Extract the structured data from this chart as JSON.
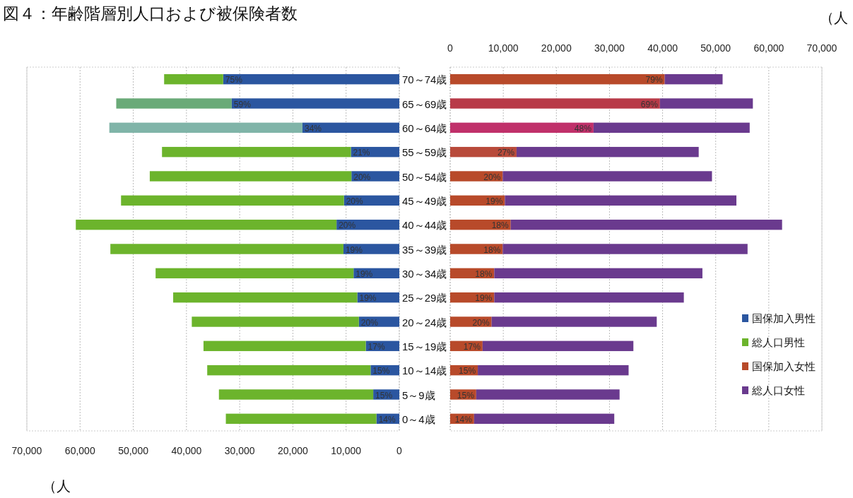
{
  "chart_data": [
    {
      "type": "bar",
      "orientation": "horizontal",
      "stacked": true,
      "title": "図４：年齢階層別人口および被保険者数",
      "annotations": [
        "（人",
        {
          "text": "75%",
          "x": 33100,
          "y": "70～74歳"
        },
        {
          "text": "59%",
          "x": 31500,
          "y": "65～69歳"
        },
        {
          "text": "34%",
          "x": 18200,
          "y": "60～64歳"
        },
        {
          "text": "21%",
          "x": 9100,
          "y": "55～59歳"
        },
        {
          "text": "20%",
          "x": 9000,
          "y": "50～54歳"
        },
        {
          "text": "20%",
          "x": 10400,
          "y": "45～49歳"
        },
        {
          "text": "20%",
          "x": 11800,
          "y": "40～44歳"
        },
        {
          "text": "19%",
          "x": 10500,
          "y": "35～39歳"
        },
        {
          "text": "19%",
          "x": 8600,
          "y": "30～34歳"
        },
        {
          "text": "19%",
          "x": 7900,
          "y": "25～29歳"
        },
        {
          "text": "20%",
          "x": 7600,
          "y": "20～24歳"
        },
        {
          "text": "17%",
          "x": 6300,
          "y": "15～19歳"
        },
        {
          "text": "15%",
          "x": 5400,
          "y": "10～14歳"
        },
        {
          "text": "15%",
          "x": 4900,
          "y": "5～9歳"
        },
        {
          "text": "14%",
          "x": 4300,
          "y": "0～4歳"
        }
      ],
      "categories": [
        "70～74歳",
        "65～69歳",
        "60～64歳",
        "55～59歳",
        "50～54歳",
        "45～49歳",
        "40～44歳",
        "35～39歳",
        "30～34歳",
        "25～29歳",
        "20～24歳",
        "15～19歳",
        "10～14歳",
        "5～9歳",
        "0～4歳"
      ],
      "series": [
        {
          "name": "国保加入男性",
          "color": "#2b56a0",
          "values": [
            33100,
            31500,
            18200,
            9100,
            9000,
            10400,
            11800,
            10500,
            8600,
            7900,
            7600,
            6300,
            5400,
            4900,
            4300
          ]
        },
        {
          "name": "総人口男性",
          "color": "#6cb42c",
          "colors": [
            "#6cb42c",
            "#6aaa78",
            "#80b4a8",
            "#6cb42c",
            "#6cb42c",
            "#6cb42c",
            "#6cb42c",
            "#6cb42c",
            "#6cb42c",
            "#6cb42c",
            "#6cb42c",
            "#6cb42c",
            "#6cb42c",
            "#6cb42c",
            "#6cb42c"
          ],
          "values": [
            11100,
            21700,
            36300,
            35500,
            37900,
            41900,
            49000,
            43800,
            37200,
            34600,
            31400,
            30500,
            30700,
            29000,
            28300
          ]
        }
      ],
      "xlim": [
        70000,
        0
      ],
      "xticks": [
        {
          "value": 70000,
          "label": "70,000"
        },
        {
          "value": 60000,
          "label": "60,000"
        },
        {
          "value": 50000,
          "label": "50,000"
        },
        {
          "value": 40000,
          "label": "40,000"
        },
        {
          "value": 30000,
          "label": "30,000"
        },
        {
          "value": 20000,
          "label": "20,000"
        },
        {
          "value": 10000,
          "label": "10,000"
        },
        0
      ],
      "grid": "x",
      "legend": "right"
    },
    {
      "type": "bar",
      "orientation": "horizontal",
      "stacked": true,
      "tick_labels": "x",
      "annotations": [
        "（人",
        {
          "text": "79%",
          "x": 40400,
          "y": "70～74歳"
        },
        {
          "text": "69%",
          "x": 39500,
          "y": "65～69歳"
        },
        {
          "text": "48%",
          "x": 27000,
          "y": "60～64歳"
        },
        {
          "text": "27%",
          "x": 12500,
          "y": "55～59歳"
        },
        {
          "text": "20%",
          "x": 9900,
          "y": "50～54歳"
        },
        {
          "text": "19%",
          "x": 10300,
          "y": "45～49歳"
        },
        {
          "text": "18%",
          "x": 11400,
          "y": "40～44歳"
        },
        {
          "text": "18%",
          "x": 9900,
          "y": "35～39歳"
        },
        {
          "text": "18%",
          "x": 8300,
          "y": "30～34歳"
        },
        {
          "text": "19%",
          "x": 8300,
          "y": "25～29歳"
        },
        {
          "text": "20%",
          "x": 7800,
          "y": "20～24歳"
        },
        {
          "text": "17%",
          "x": 6100,
          "y": "15～19歳"
        },
        {
          "text": "15%",
          "x": 5200,
          "y": "10～14歳"
        },
        {
          "text": "15%",
          "x": 4900,
          "y": "5～9歳"
        },
        {
          "text": "14%",
          "x": 4500,
          "y": "0～4歳"
        }
      ],
      "categories": [
        "70～74歳",
        "65～69歳",
        "60～64歳",
        "55～59歳",
        "50～54歳",
        "45～49歳",
        "40～44歳",
        "35～39歳",
        "30～34歳",
        "25～29歳",
        "20～24歳",
        "15～19歳",
        "10～14歳",
        "5～9歳",
        "0～4歳"
      ],
      "series": [
        {
          "name": "国保加入女性",
          "color": "#b84a2a",
          "colors": [
            "#b84a2a",
            "#b83a48",
            "#c0306a",
            "#b84a3a",
            "#b84a2a",
            "#b84a2a",
            "#b84a2a",
            "#b84a2a",
            "#b84a2a",
            "#b84a2a",
            "#b84a2a",
            "#b84a2a",
            "#b84a2a",
            "#b84a2a",
            "#b84a2a"
          ],
          "values": [
            40400,
            39500,
            27000,
            12500,
            9900,
            10300,
            11400,
            9900,
            8300,
            8300,
            7800,
            6100,
            5200,
            4900,
            4500
          ]
        },
        {
          "name": "総人口女性",
          "color": "#6a3a8e",
          "values": [
            10900,
            17500,
            29400,
            34300,
            39400,
            43600,
            51100,
            46100,
            39200,
            35700,
            31100,
            28400,
            28400,
            27000,
            26400
          ]
        }
      ],
      "xlim": [
        0,
        70000
      ],
      "xticks": [
        0,
        {
          "value": 10000,
          "label": "10,000"
        },
        {
          "value": 20000,
          "label": "20,000"
        },
        {
          "value": 30000,
          "label": "30,000"
        },
        {
          "value": 40000,
          "label": "40,000"
        },
        {
          "value": 50000,
          "label": "50,000"
        },
        {
          "value": 60000,
          "label": "60,000"
        },
        {
          "value": 70000,
          "label": "70,000"
        }
      ],
      "grid": "x",
      "legend": "bottom right"
    }
  ]
}
